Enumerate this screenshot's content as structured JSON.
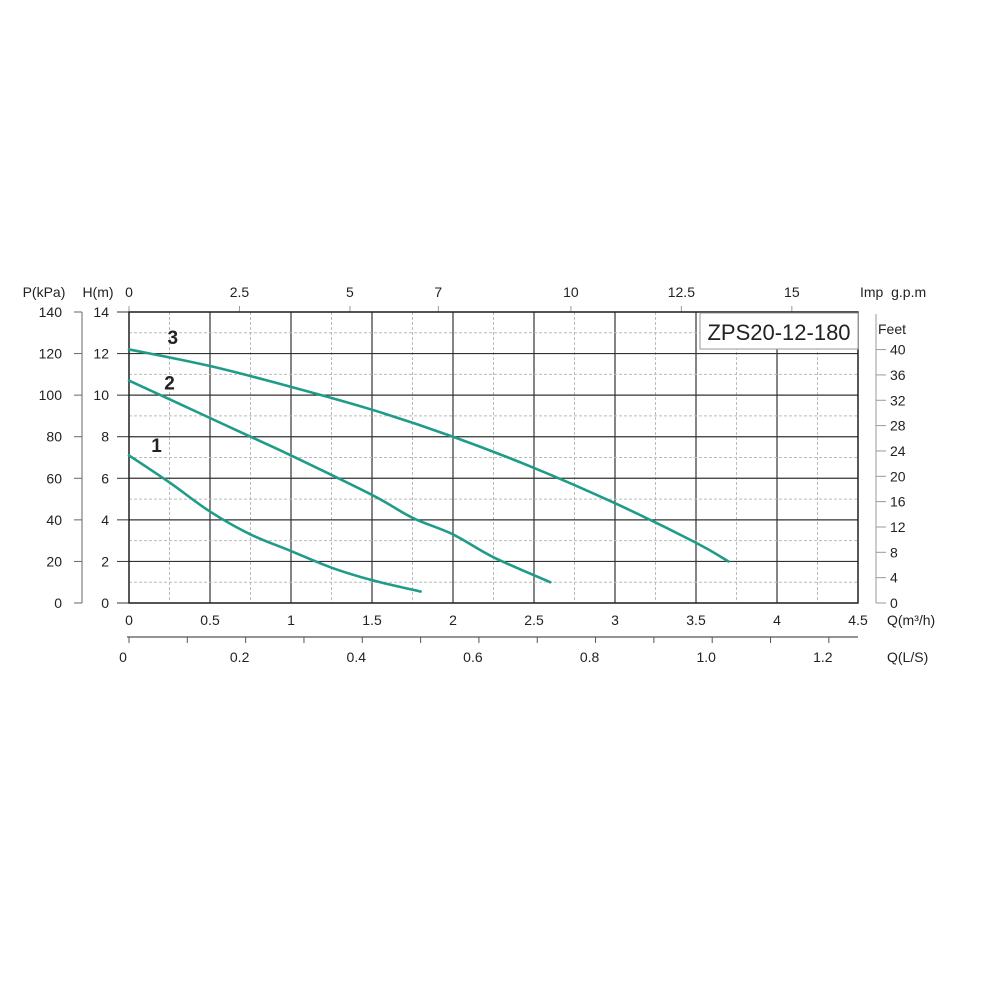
{
  "chart_data": {
    "type": "line",
    "title": "ZPS20-12-180",
    "xlabel": "Q(m³/h)",
    "ylabel": "H(m)",
    "xlim": [
      0,
      4.5
    ],
    "ylim": [
      0,
      14
    ],
    "grid": true,
    "x_ticks": [
      "0",
      "0.5",
      "1",
      "1.5",
      "2",
      "2.5",
      "3",
      "3.5",
      "4",
      "4.5"
    ],
    "y_ticks": [
      "0",
      "2",
      "4",
      "6",
      "8",
      "10",
      "12",
      "14"
    ],
    "secondary_axes": {
      "pressure": {
        "label": "P(kPa)",
        "ticks": [
          "0",
          "20",
          "40",
          "60",
          "80",
          "100",
          "120",
          "140"
        ]
      },
      "feet": {
        "label": "Feet",
        "ticks": [
          "0",
          "4",
          "8",
          "12",
          "16",
          "20",
          "24",
          "28",
          "32",
          "36",
          "40"
        ]
      },
      "imp_gpm": {
        "label": "Imp  g.p.m",
        "ticks": [
          "0",
          "2.5",
          "5",
          "7",
          "10",
          "12.5",
          "15"
        ],
        "tick_values": [
          0,
          2.5,
          5,
          7,
          10,
          12.5,
          15
        ]
      },
      "ls": {
        "label": "Q(L/S)",
        "ticks": [
          "0",
          "0.2",
          "0.4",
          "0.6",
          "0.8",
          "1.0",
          "1.2"
        ],
        "tick_values": [
          0,
          0.2,
          0.4,
          0.6,
          0.8,
          1.0,
          1.2
        ]
      }
    },
    "series": [
      {
        "name": "1",
        "x": [
          0,
          0.25,
          0.5,
          0.75,
          1,
          1.25,
          1.5,
          1.8
        ],
        "y": [
          7.1,
          5.8,
          4.4,
          3.3,
          2.5,
          1.7,
          1.1,
          0.55
        ]
      },
      {
        "name": "2",
        "x": [
          0,
          0.5,
          0.75,
          1,
          1.5,
          1.75,
          2,
          2.25,
          2.6
        ],
        "y": [
          10.7,
          8.9,
          8.0,
          7.1,
          5.2,
          4.1,
          3.3,
          2.2,
          1.0
        ]
      },
      {
        "name": "3",
        "x": [
          0,
          0.5,
          1,
          1.5,
          2,
          2.5,
          3,
          3.5,
          3.7
        ],
        "y": [
          12.2,
          11.4,
          10.4,
          9.3,
          8.0,
          6.5,
          4.8,
          2.9,
          2.0
        ]
      }
    ],
    "colors": {
      "curve": "#1f9c88",
      "grid": "#333333",
      "minor_grid": "#bbbbbb"
    }
  }
}
